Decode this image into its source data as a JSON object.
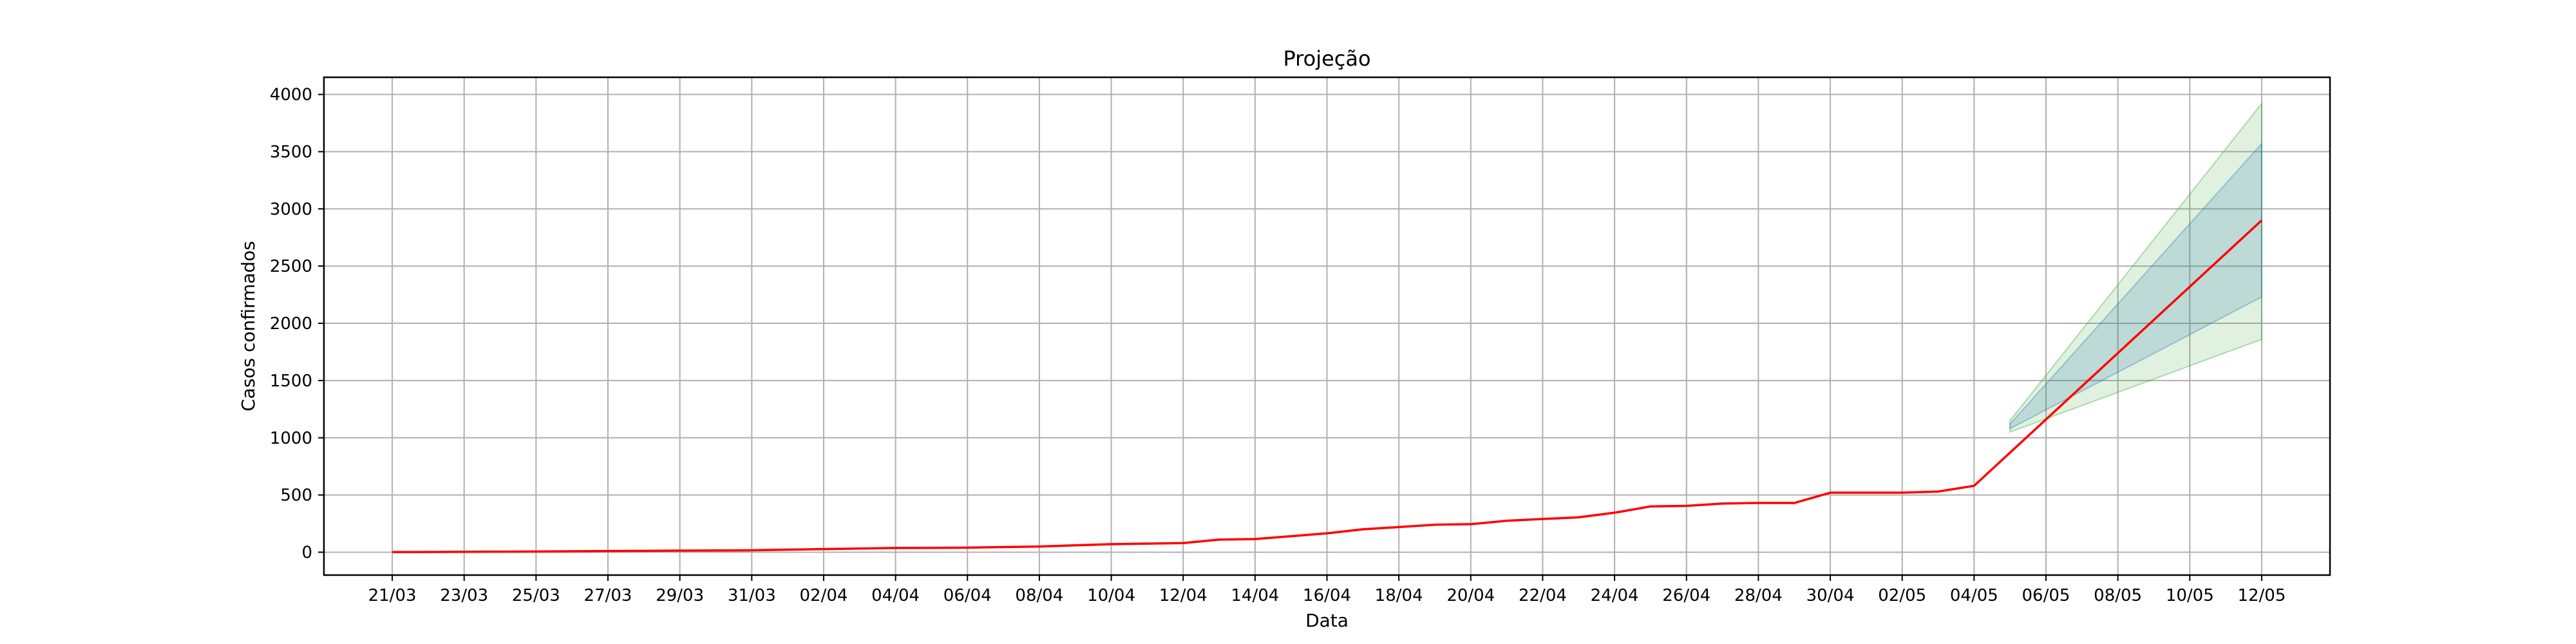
{
  "chart_data": {
    "type": "line",
    "title": "Projeção",
    "xlabel": "Data",
    "ylabel": "Casos confirmados",
    "ylim": [
      -200,
      4150
    ],
    "y_ticks": [
      0,
      500,
      1000,
      1500,
      2000,
      2500,
      3000,
      3500,
      4000
    ],
    "x_tick_labels": [
      "21/03",
      "23/03",
      "25/03",
      "27/03",
      "29/03",
      "31/03",
      "02/04",
      "04/04",
      "06/04",
      "08/04",
      "10/04",
      "12/04",
      "14/04",
      "16/04",
      "18/04",
      "20/04",
      "22/04",
      "24/04",
      "26/04",
      "28/04",
      "30/04",
      "02/05",
      "04/05",
      "06/05",
      "08/05",
      "10/05",
      "12/05"
    ],
    "grid": true,
    "series": [
      {
        "color": "#ff0000",
        "x": [
          "21/03",
          "22/03",
          "23/03",
          "24/03",
          "25/03",
          "26/03",
          "27/03",
          "28/03",
          "29/03",
          "30/03",
          "31/03",
          "01/04",
          "02/04",
          "03/04",
          "04/04",
          "05/04",
          "06/04",
          "07/04",
          "08/04",
          "09/04",
          "10/04",
          "11/04",
          "12/04",
          "13/04",
          "14/04",
          "15/04",
          "16/04",
          "17/04",
          "18/04",
          "19/04",
          "20/04",
          "21/04",
          "22/04",
          "23/04",
          "24/04",
          "25/04",
          "26/04",
          "27/04",
          "28/04",
          "29/04",
          "30/04",
          "01/05",
          "02/05",
          "03/05",
          "04/05",
          "12/05"
        ],
        "values": [
          1,
          2,
          3,
          5,
          6,
          8,
          10,
          12,
          14,
          15,
          17,
          22,
          27,
          32,
          37,
          38,
          40,
          45,
          50,
          60,
          70,
          75,
          80,
          110,
          115,
          140,
          165,
          200,
          220,
          240,
          245,
          275,
          290,
          305,
          345,
          400,
          405,
          425,
          430,
          430,
          520,
          520,
          520,
          530,
          580,
          2900
        ]
      }
    ],
    "bands": [
      {
        "color": "#2ca02c",
        "opacity": 0.15,
        "x": [
          "05/05",
          "12/05"
        ],
        "lower": [
          1050,
          1860
        ],
        "upper": [
          1150,
          3920
        ]
      },
      {
        "color": "#1f77b4",
        "opacity": 0.18,
        "x": [
          "05/05",
          "12/05"
        ],
        "lower": [
          1080,
          2230
        ],
        "upper": [
          1120,
          3570
        ]
      }
    ]
  }
}
